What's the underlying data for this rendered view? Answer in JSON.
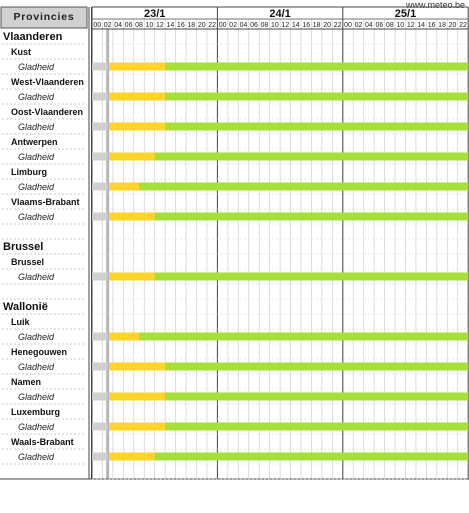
{
  "site": "www.meteo.be",
  "header": {
    "provinces_label": "Provincies",
    "days": [
      "23/1",
      "24/1",
      "25/1"
    ],
    "hours": [
      "00",
      "02",
      "04",
      "06",
      "08",
      "10",
      "12",
      "14",
      "16",
      "18",
      "20",
      "22"
    ]
  },
  "colors": {
    "warning_yellow": "#ffd42a",
    "warning_green": "#a6df38",
    "header_bg": "#d0d0d0",
    "row_shade": "#e6e6e6"
  },
  "rows": [
    {
      "type": "region",
      "label": "Vlaanderen"
    },
    {
      "type": "province",
      "label": "Kust"
    },
    {
      "type": "hazard",
      "label": "Gladheid",
      "yellow_until_hour": 14
    },
    {
      "type": "province",
      "label": "West-Vlaanderen"
    },
    {
      "type": "hazard",
      "label": "Gladheid",
      "yellow_until_hour": 14
    },
    {
      "type": "province",
      "label": "Oost-Vlaanderen"
    },
    {
      "type": "hazard",
      "label": "Gladheid",
      "yellow_until_hour": 14
    },
    {
      "type": "province",
      "label": "Antwerpen"
    },
    {
      "type": "hazard",
      "label": "Gladheid",
      "yellow_until_hour": 12
    },
    {
      "type": "province",
      "label": "Limburg"
    },
    {
      "type": "hazard",
      "label": "Gladheid",
      "yellow_until_hour": 9
    },
    {
      "type": "province",
      "label": "Vlaams-Brabant"
    },
    {
      "type": "hazard",
      "label": "Gladheid",
      "yellow_until_hour": 12
    },
    {
      "type": "spacer"
    },
    {
      "type": "region",
      "label": "Brussel"
    },
    {
      "type": "province",
      "label": "Brussel"
    },
    {
      "type": "hazard",
      "label": "Gladheid",
      "yellow_until_hour": 12
    },
    {
      "type": "spacer"
    },
    {
      "type": "region",
      "label": "Wallonië"
    },
    {
      "type": "province",
      "label": "Luik"
    },
    {
      "type": "hazard",
      "label": "Gladheid",
      "yellow_until_hour": 9
    },
    {
      "type": "province",
      "label": "Henegouwen"
    },
    {
      "type": "hazard",
      "label": "Gladheid",
      "yellow_until_hour": 14
    },
    {
      "type": "province",
      "label": "Namen"
    },
    {
      "type": "hazard",
      "label": "Gladheid",
      "yellow_until_hour": 14
    },
    {
      "type": "province",
      "label": "Luxemburg"
    },
    {
      "type": "hazard",
      "label": "Gladheid",
      "yellow_until_hour": 14
    },
    {
      "type": "province",
      "label": "Waals-Brabant"
    },
    {
      "type": "hazard",
      "label": "Gladheid",
      "yellow_until_hour": 12
    },
    {
      "type": "spacer"
    }
  ]
}
